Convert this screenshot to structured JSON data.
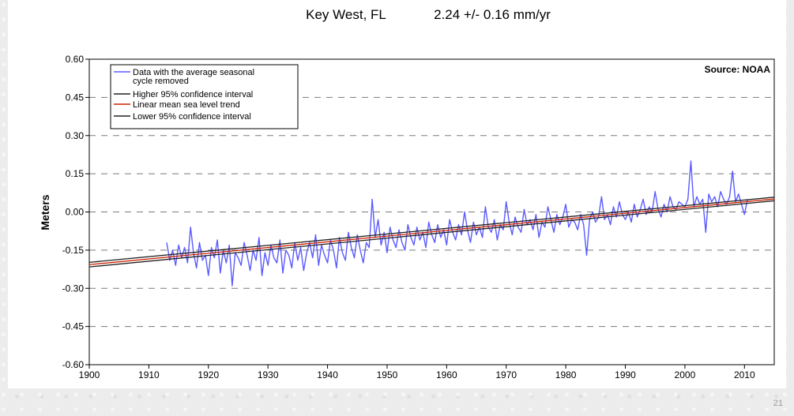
{
  "slide": {
    "number": "21"
  },
  "chart_data": {
    "type": "line",
    "title": "Key West, FL",
    "trend_label": "2.24 +/- 0.16 mm/yr",
    "source": "Source: NOAA",
    "xlabel": "",
    "ylabel": "Meters",
    "xlim": [
      1900,
      2015
    ],
    "ylim": [
      -0.6,
      0.6
    ],
    "x_ticks": [
      "1900",
      "1910",
      "1920",
      "1930",
      "1940",
      "1950",
      "1960",
      "1970",
      "1980",
      "1990",
      "2000",
      "2010"
    ],
    "y_ticks": [
      "0.60",
      "0.45",
      "0.30",
      "0.15",
      "0.00",
      "-0.15",
      "-0.30",
      "-0.45",
      "-0.60"
    ],
    "grid": "horizontal dashed",
    "legend_position": "top-left",
    "series": [
      {
        "name": "Data with the average seasonal cycle removed",
        "color": "#5a5aff",
        "x_start": 1913.0,
        "x_step": 0.5,
        "values": [
          -0.12,
          -0.19,
          -0.15,
          -0.21,
          -0.13,
          -0.18,
          -0.14,
          -0.2,
          -0.06,
          -0.16,
          -0.22,
          -0.12,
          -0.19,
          -0.17,
          -0.25,
          -0.14,
          -0.18,
          -0.11,
          -0.24,
          -0.15,
          -0.2,
          -0.13,
          -0.29,
          -0.16,
          -0.18,
          -0.21,
          -0.12,
          -0.17,
          -0.23,
          -0.15,
          -0.19,
          -0.1,
          -0.25,
          -0.16,
          -0.21,
          -0.13,
          -0.18,
          -0.2,
          -0.11,
          -0.24,
          -0.15,
          -0.17,
          -0.22,
          -0.12,
          -0.19,
          -0.14,
          -0.23,
          -0.16,
          -0.12,
          -0.18,
          -0.09,
          -0.21,
          -0.13,
          -0.17,
          -0.2,
          -0.11,
          -0.15,
          -0.22,
          -0.1,
          -0.16,
          -0.19,
          -0.08,
          -0.14,
          -0.18,
          -0.09,
          -0.15,
          -0.2,
          -0.12,
          -0.14,
          0.05,
          -0.1,
          -0.03,
          -0.13,
          -0.08,
          -0.16,
          -0.06,
          -0.11,
          -0.14,
          -0.07,
          -0.12,
          -0.15,
          -0.05,
          -0.1,
          -0.13,
          -0.06,
          -0.11,
          -0.08,
          -0.14,
          -0.04,
          -0.09,
          -0.12,
          -0.05,
          -0.1,
          -0.07,
          -0.13,
          -0.03,
          -0.08,
          -0.11,
          -0.05,
          -0.09,
          0.0,
          -0.07,
          -0.12,
          -0.04,
          -0.09,
          -0.06,
          -0.1,
          0.02,
          -0.06,
          -0.08,
          -0.03,
          -0.11,
          -0.05,
          -0.07,
          0.04,
          -0.04,
          -0.09,
          -0.02,
          -0.06,
          -0.08,
          0.01,
          -0.05,
          -0.03,
          -0.07,
          -0.01,
          -0.1,
          -0.04,
          -0.06,
          0.02,
          -0.03,
          -0.08,
          -0.01,
          -0.05,
          -0.02,
          0.03,
          -0.06,
          -0.03,
          -0.04,
          -0.07,
          -0.01,
          -0.05,
          -0.17,
          -0.03,
          0.0,
          -0.04,
          -0.02,
          0.06,
          -0.03,
          -0.01,
          -0.05,
          0.02,
          -0.02,
          0.04,
          -0.01,
          -0.03,
          0.0,
          -0.04,
          0.03,
          -0.02,
          0.01,
          0.05,
          -0.01,
          0.02,
          0.0,
          0.08,
          0.01,
          -0.02,
          0.03,
          0.0,
          0.06,
          0.02,
          0.01,
          0.04,
          0.03,
          0.02,
          0.05,
          0.2,
          0.02,
          0.06,
          0.03,
          0.05,
          -0.08,
          0.07,
          0.04,
          0.06,
          0.02,
          0.08,
          0.05,
          0.03,
          0.06,
          0.16,
          0.04,
          0.07,
          0.03,
          -0.01,
          0.05
        ]
      },
      {
        "name": "Higher 95% confidence interval",
        "color": "#222222",
        "x": [
          1900,
          2015
        ],
        "values": [
          -0.198,
          0.058
        ]
      },
      {
        "name": "Linear mean sea level trend",
        "color": "#cc2200",
        "x": [
          1900,
          2015
        ],
        "values": [
          -0.207,
          0.051
        ]
      },
      {
        "name": "Lower 95% confidence interval",
        "color": "#222222",
        "x": [
          1900,
          2015
        ],
        "values": [
          -0.216,
          0.044
        ]
      }
    ]
  }
}
